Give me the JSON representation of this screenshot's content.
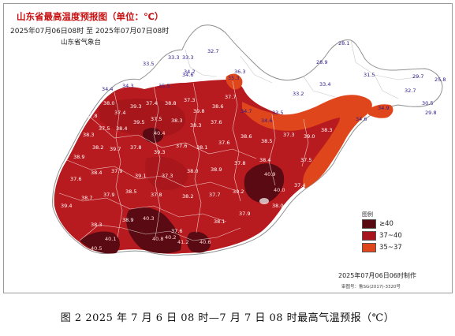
{
  "map": {
    "title": "山东省最高温度预报图（单位：℃）",
    "period": "2025年07月06日08时 至 2025年07月07日08时",
    "issuer": "山东省气象台",
    "made_time": "2025年07月06日06时制作",
    "approval_no": "审图号：鲁SG(2017)-3320号",
    "legend": {
      "title": "图例",
      "items": [
        {
          "label": "≥40",
          "color": "#5a0a12"
        },
        {
          "label": "37~40",
          "color": "#a8141c"
        },
        {
          "label": "35~37",
          "color": "#e0461c"
        }
      ]
    },
    "colors": {
      "land_base": "#ffffff",
      "zone_35_37": "#e0461c",
      "zone_37_40": "#b81b1f",
      "zone_37_40_dark": "#9e1419",
      "zone_ge_40": "#5a0a12",
      "boundary": "#ffffff",
      "label_inland": "#ffffff",
      "label_coast": "#2a1a8a"
    },
    "station_values": {
      "cool": [
        "32.7",
        "33.5",
        "33.3",
        "33.3",
        "34.2",
        "34.4",
        "34.3",
        "35.5",
        "28.1",
        "28.9",
        "33.2",
        "33.4",
        "31.5",
        "29.7",
        "25.8",
        "32.7",
        "30.5",
        "29.8",
        "34.9",
        "34.6",
        "33.5",
        "34.7",
        "34.6",
        "35.3",
        "34.6",
        "36.3"
      ],
      "hot": [
        "37.8",
        "38.0",
        "37.4",
        "39.3",
        "37.4",
        "38.8",
        "37.3",
        "39.8",
        "38.6",
        "37.7",
        "38.3",
        "37.5",
        "38.4",
        "39.5",
        "37.5",
        "38.3",
        "38.3",
        "37.6",
        "38.9",
        "38.2",
        "39.7",
        "37.8",
        "39.3",
        "37.6",
        "38.1",
        "37.6",
        "38.6",
        "38.5",
        "37.3",
        "39.0",
        "38.3",
        "37.6",
        "38.4",
        "37.9",
        "39.1",
        "37.3",
        "38.0",
        "38.9",
        "37.8",
        "38.4",
        "37.5",
        "39.4",
        "38.7",
        "37.9",
        "38.5",
        "37.8",
        "38.2",
        "37.7",
        "39.2",
        "38.0",
        "37.4",
        "38.3",
        "38.9",
        "37.6",
        "38.1",
        "37.9"
      ],
      "extreme": [
        "40.1",
        "40.5",
        "40.3",
        "40.8",
        "40.2",
        "41.2",
        "40.6",
        "40.9",
        "40.0",
        "40.4"
      ]
    }
  },
  "caption": "图 2  2025 年 7 月 6 日 08 时—7 月 7 日 08 时最高气温预报（℃）"
}
